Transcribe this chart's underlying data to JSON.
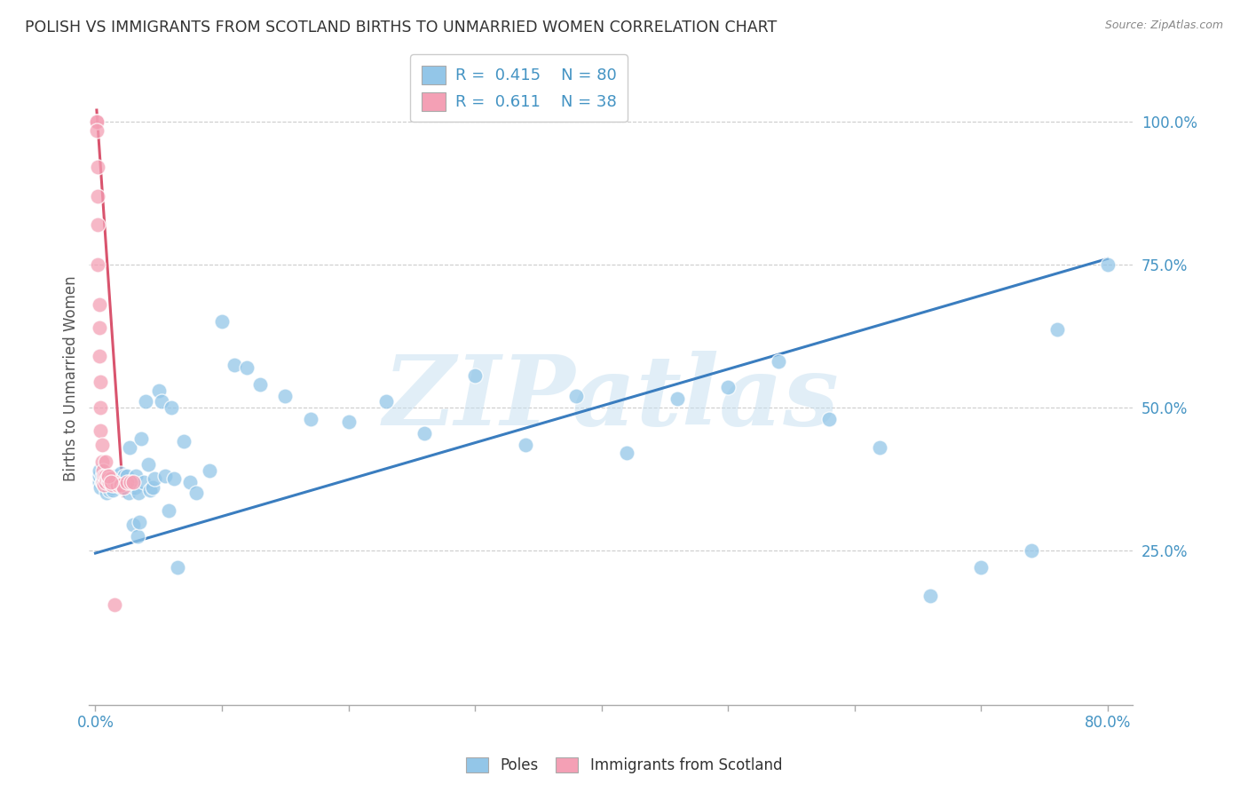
{
  "title": "POLISH VS IMMIGRANTS FROM SCOTLAND BIRTHS TO UNMARRIED WOMEN CORRELATION CHART",
  "source": "Source: ZipAtlas.com",
  "ylabel": "Births to Unmarried Women",
  "x_left_label": "0.0%",
  "x_right_label": "80.0%",
  "ylabel_ticks": [
    "25.0%",
    "50.0%",
    "75.0%",
    "100.0%"
  ],
  "legend_label1": "Poles",
  "legend_label2": "Immigrants from Scotland",
  "legend_R1": "0.415",
  "legend_N1": "80",
  "legend_R2": "0.611",
  "legend_N2": "38",
  "watermark": "ZIPatlas",
  "blue_color": "#93c6e8",
  "pink_color": "#f4a0b5",
  "regression_line_color": "#3a7dbf",
  "pink_regression_color": "#d9546e",
  "title_color": "#333333",
  "tick_color": "#4393c3",
  "blue_scatter_x": [
    0.003,
    0.003,
    0.003,
    0.004,
    0.005,
    0.005,
    0.006,
    0.007,
    0.008,
    0.008,
    0.009,
    0.009,
    0.01,
    0.01,
    0.011,
    0.012,
    0.013,
    0.013,
    0.014,
    0.015,
    0.016,
    0.016,
    0.017,
    0.018,
    0.019,
    0.02,
    0.021,
    0.022,
    0.023,
    0.025,
    0.026,
    0.027,
    0.028,
    0.03,
    0.031,
    0.032,
    0.033,
    0.034,
    0.035,
    0.036,
    0.038,
    0.04,
    0.042,
    0.043,
    0.045,
    0.047,
    0.05,
    0.052,
    0.055,
    0.058,
    0.06,
    0.062,
    0.065,
    0.07,
    0.075,
    0.08,
    0.09,
    0.1,
    0.11,
    0.12,
    0.13,
    0.15,
    0.17,
    0.2,
    0.23,
    0.26,
    0.3,
    0.34,
    0.38,
    0.42,
    0.46,
    0.5,
    0.54,
    0.58,
    0.62,
    0.66,
    0.7,
    0.74,
    0.76,
    0.8
  ],
  "blue_scatter_y": [
    0.37,
    0.38,
    0.39,
    0.36,
    0.37,
    0.38,
    0.37,
    0.38,
    0.36,
    0.37,
    0.35,
    0.375,
    0.36,
    0.37,
    0.355,
    0.37,
    0.36,
    0.375,
    0.355,
    0.365,
    0.37,
    0.38,
    0.375,
    0.365,
    0.375,
    0.385,
    0.36,
    0.37,
    0.38,
    0.38,
    0.35,
    0.43,
    0.365,
    0.295,
    0.36,
    0.38,
    0.275,
    0.35,
    0.3,
    0.445,
    0.37,
    0.51,
    0.4,
    0.355,
    0.36,
    0.375,
    0.53,
    0.51,
    0.38,
    0.32,
    0.5,
    0.375,
    0.22,
    0.44,
    0.37,
    0.35,
    0.39,
    0.65,
    0.575,
    0.57,
    0.54,
    0.52,
    0.48,
    0.475,
    0.51,
    0.455,
    0.555,
    0.435,
    0.52,
    0.42,
    0.515,
    0.535,
    0.58,
    0.48,
    0.43,
    0.17,
    0.22,
    0.25,
    0.636,
    0.75
  ],
  "pink_scatter_x": [
    0.001,
    0.001,
    0.001,
    0.002,
    0.002,
    0.002,
    0.002,
    0.003,
    0.003,
    0.003,
    0.004,
    0.004,
    0.004,
    0.005,
    0.005,
    0.006,
    0.006,
    0.007,
    0.007,
    0.008,
    0.008,
    0.009,
    0.01,
    0.01,
    0.011,
    0.012,
    0.013,
    0.015,
    0.017,
    0.02,
    0.022,
    0.025,
    0.028,
    0.03,
    0.008,
    0.01,
    0.012,
    0.015
  ],
  "pink_scatter_y": [
    1.0,
    1.0,
    0.985,
    0.92,
    0.87,
    0.82,
    0.75,
    0.68,
    0.64,
    0.59,
    0.545,
    0.5,
    0.46,
    0.435,
    0.405,
    0.39,
    0.37,
    0.38,
    0.365,
    0.38,
    0.37,
    0.375,
    0.38,
    0.375,
    0.37,
    0.375,
    0.365,
    0.37,
    0.365,
    0.365,
    0.36,
    0.37,
    0.37,
    0.37,
    0.405,
    0.38,
    0.37,
    0.155
  ],
  "blue_line_x": [
    0.0,
    0.8
  ],
  "blue_line_y": [
    0.245,
    0.76
  ],
  "pink_line_x": [
    0.001,
    0.022
  ],
  "pink_line_y": [
    1.02,
    0.345
  ],
  "xlim": [
    -0.005,
    0.82
  ],
  "ylim": [
    -0.02,
    1.12
  ],
  "x_tick_positions": [
    0.0,
    0.1,
    0.2,
    0.3,
    0.4,
    0.5,
    0.6,
    0.7,
    0.8
  ],
  "y_tick_vals": [
    0.25,
    0.5,
    0.75,
    1.0
  ]
}
